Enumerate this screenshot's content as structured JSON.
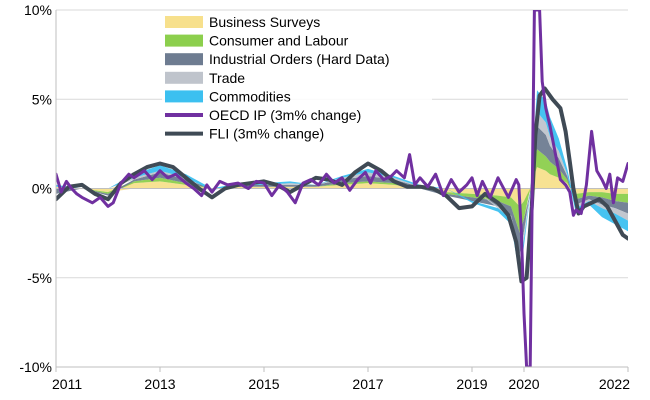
{
  "chart_data": {
    "type": "area",
    "title": "",
    "xlabel": "",
    "ylabel": "",
    "x_ticks": [
      "2011",
      "2013",
      "2015",
      "2017",
      "2019",
      "2020",
      "2022"
    ],
    "x_tick_years": [
      2011,
      2013,
      2015,
      2017,
      2019,
      2020,
      2022
    ],
    "xlim": [
      2011,
      2022
    ],
    "ylim": [
      -10,
      10
    ],
    "y_ticks": [
      10,
      5,
      0,
      -5,
      -10
    ],
    "y_tick_labels": [
      "10%",
      "5%",
      "0%",
      "-5%",
      "-10%"
    ],
    "grid": "horizontal",
    "legend_position": "top-left",
    "x": [
      2011.0,
      2011.5,
      2012.0,
      2012.5,
      2013.0,
      2013.5,
      2014.0,
      2014.5,
      2015.0,
      2015.5,
      2016.0,
      2016.5,
      2017.0,
      2017.5,
      2018.0,
      2018.5,
      2019.0,
      2019.5,
      2019.75,
      2019.92,
      2020.0,
      2020.12,
      2020.25,
      2020.42,
      2020.5,
      2020.67,
      2020.83,
      2021.0,
      2021.25,
      2021.5,
      2021.75,
      2022.0
    ],
    "stacked_series": [
      {
        "name": "Business Surveys",
        "color": "#F7E08C",
        "values": [
          0.1,
          0.0,
          -0.2,
          0.3,
          0.4,
          0.2,
          0.0,
          0.1,
          0.1,
          0.1,
          0.1,
          0.2,
          0.3,
          0.2,
          0.0,
          -0.2,
          -0.3,
          -0.4,
          -0.5,
          -1.0,
          -0.7,
          -0.2,
          1.2,
          1.0,
          0.8,
          0.6,
          0.3,
          -0.3,
          -0.2,
          -0.2,
          -0.3,
          -0.3
        ]
      },
      {
        "name": "Consumer and Labour",
        "color": "#8CCF4D",
        "values": [
          0.0,
          0.0,
          -0.1,
          0.1,
          0.2,
          0.1,
          0.0,
          0.0,
          0.0,
          0.0,
          0.0,
          0.1,
          0.1,
          0.1,
          0.0,
          -0.1,
          -0.2,
          -0.3,
          -0.5,
          -1.5,
          -1.0,
          0.0,
          1.0,
          0.8,
          0.7,
          0.5,
          0.2,
          -0.3,
          -0.2,
          -0.3,
          -0.4,
          -0.5
        ]
      },
      {
        "name": "Industrial Orders (Hard Data)",
        "color": "#6E7C91",
        "values": [
          -0.3,
          0.0,
          -0.1,
          0.1,
          0.3,
          0.2,
          0.0,
          0.1,
          0.1,
          0.1,
          0.1,
          0.2,
          0.3,
          0.2,
          0.1,
          -0.1,
          -0.2,
          -0.3,
          -0.5,
          -1.2,
          -0.7,
          -0.1,
          1.3,
          1.2,
          0.9,
          0.6,
          0.2,
          -0.3,
          -0.2,
          -0.4,
          -0.4,
          -0.6
        ]
      },
      {
        "name": "Trade",
        "color": "#BFC4CC",
        "values": [
          0.0,
          0.0,
          0.0,
          0.1,
          0.1,
          0.1,
          0.0,
          0.0,
          0.0,
          0.1,
          0.0,
          0.1,
          0.2,
          0.1,
          0.0,
          0.0,
          0.0,
          -0.1,
          -0.2,
          -0.8,
          -0.4,
          0.0,
          0.8,
          0.7,
          0.5,
          0.4,
          0.1,
          -0.2,
          -0.1,
          -0.2,
          -0.3,
          -0.4
        ]
      },
      {
        "name": "Commodities",
        "color": "#3CC0F0",
        "values": [
          0.1,
          0.0,
          0.0,
          0.2,
          0.3,
          0.2,
          -0.1,
          0.1,
          0.1,
          0.1,
          0.0,
          0.1,
          0.2,
          0.1,
          0.1,
          0.0,
          -0.1,
          -0.2,
          -0.3,
          -0.5,
          -0.4,
          -0.1,
          1.2,
          1.2,
          1.1,
          0.7,
          0.3,
          -0.3,
          -0.2,
          -0.5,
          -0.6,
          -0.6
        ]
      }
    ],
    "line_series": [
      {
        "name": "OECD IP (3m% change)",
        "color": "#7030A0",
        "points": [
          [
            2011.0,
            0.8
          ],
          [
            2011.1,
            -0.2
          ],
          [
            2011.2,
            0.4
          ],
          [
            2011.3,
            0.0
          ],
          [
            2011.4,
            -0.3
          ],
          [
            2011.5,
            -0.5
          ],
          [
            2011.7,
            -0.8
          ],
          [
            2011.85,
            -0.5
          ],
          [
            2012.0,
            -1.0
          ],
          [
            2012.1,
            -0.8
          ],
          [
            2012.25,
            0.3
          ],
          [
            2012.4,
            0.8
          ],
          [
            2012.5,
            0.6
          ],
          [
            2012.7,
            1.0
          ],
          [
            2012.85,
            0.5
          ],
          [
            2013.0,
            1.0
          ],
          [
            2013.15,
            0.6
          ],
          [
            2013.3,
            0.8
          ],
          [
            2013.5,
            0.3
          ],
          [
            2013.65,
            0.0
          ],
          [
            2013.8,
            -0.4
          ],
          [
            2013.9,
            0.2
          ],
          [
            2014.0,
            -0.2
          ],
          [
            2014.15,
            0.4
          ],
          [
            2014.3,
            0.2
          ],
          [
            2014.5,
            0.3
          ],
          [
            2014.7,
            0.0
          ],
          [
            2014.85,
            0.4
          ],
          [
            2015.0,
            0.3
          ],
          [
            2015.15,
            -0.4
          ],
          [
            2015.3,
            0.2
          ],
          [
            2015.45,
            -0.2
          ],
          [
            2015.6,
            -0.8
          ],
          [
            2015.75,
            0.3
          ],
          [
            2015.9,
            0.5
          ],
          [
            2016.05,
            0.2
          ],
          [
            2016.2,
            0.8
          ],
          [
            2016.35,
            0.3
          ],
          [
            2016.5,
            0.6
          ],
          [
            2016.65,
            -0.1
          ],
          [
            2016.8,
            0.5
          ],
          [
            2016.95,
            0.9
          ],
          [
            2017.05,
            0.3
          ],
          [
            2017.15,
            1.0
          ],
          [
            2017.3,
            0.5
          ],
          [
            2017.45,
            0.7
          ],
          [
            2017.55,
            1.0
          ],
          [
            2017.7,
            0.6
          ],
          [
            2017.8,
            1.9
          ],
          [
            2017.9,
            0.2
          ],
          [
            2018.0,
            0.6
          ],
          [
            2018.15,
            0.1
          ],
          [
            2018.3,
            0.8
          ],
          [
            2018.45,
            -0.4
          ],
          [
            2018.6,
            0.5
          ],
          [
            2018.75,
            -0.2
          ],
          [
            2018.9,
            0.2
          ],
          [
            2019.0,
            0.6
          ],
          [
            2019.1,
            -0.4
          ],
          [
            2019.2,
            0.4
          ],
          [
            2019.35,
            -0.5
          ],
          [
            2019.5,
            0.6
          ],
          [
            2019.7,
            -0.5
          ],
          [
            2019.85,
            0.5
          ],
          [
            2019.9,
            0.2
          ],
          [
            2019.95,
            -2.5
          ],
          [
            2020.0,
            -7.0
          ],
          [
            2020.05,
            -10.0
          ],
          [
            2020.12,
            -10.0
          ],
          [
            2020.2,
            10.0
          ],
          [
            2020.3,
            10.0
          ],
          [
            2020.35,
            6.0
          ],
          [
            2020.42,
            4.5
          ],
          [
            2020.5,
            3.5
          ],
          [
            2020.6,
            2.0
          ],
          [
            2020.7,
            0.5
          ],
          [
            2020.8,
            0.2
          ],
          [
            2020.88,
            -0.2
          ],
          [
            2020.95,
            -1.5
          ],
          [
            2021.0,
            -1.2
          ],
          [
            2021.1,
            -1.4
          ],
          [
            2021.2,
            0.2
          ],
          [
            2021.3,
            3.2
          ],
          [
            2021.4,
            1.0
          ],
          [
            2021.5,
            0.5
          ],
          [
            2021.58,
            0.0
          ],
          [
            2021.65,
            0.8
          ],
          [
            2021.72,
            -0.8
          ],
          [
            2021.8,
            0.6
          ],
          [
            2021.9,
            0.4
          ],
          [
            2022.0,
            1.4
          ]
        ]
      },
      {
        "name": "FLI (3m% change)",
        "color": "#3F4A55",
        "points": [
          [
            2011.0,
            -0.6
          ],
          [
            2011.25,
            0.1
          ],
          [
            2011.5,
            0.2
          ],
          [
            2011.75,
            -0.3
          ],
          [
            2012.0,
            -0.6
          ],
          [
            2012.25,
            0.3
          ],
          [
            2012.5,
            0.8
          ],
          [
            2012.75,
            1.2
          ],
          [
            2013.0,
            1.4
          ],
          [
            2013.25,
            1.2
          ],
          [
            2013.5,
            0.6
          ],
          [
            2013.75,
            0.0
          ],
          [
            2014.0,
            -0.5
          ],
          [
            2014.25,
            0.0
          ],
          [
            2014.5,
            0.2
          ],
          [
            2014.75,
            0.3
          ],
          [
            2015.0,
            0.4
          ],
          [
            2015.25,
            0.2
          ],
          [
            2015.5,
            -0.2
          ],
          [
            2015.75,
            0.2
          ],
          [
            2016.0,
            0.6
          ],
          [
            2016.25,
            0.5
          ],
          [
            2016.5,
            0.2
          ],
          [
            2016.75,
            0.9
          ],
          [
            2017.0,
            1.4
          ],
          [
            2017.25,
            1.0
          ],
          [
            2017.5,
            0.4
          ],
          [
            2017.75,
            0.1
          ],
          [
            2018.0,
            0.1
          ],
          [
            2018.25,
            0.0
          ],
          [
            2018.5,
            -0.4
          ],
          [
            2018.75,
            -1.1
          ],
          [
            2019.0,
            -1.0
          ],
          [
            2019.25,
            -0.3
          ],
          [
            2019.5,
            -0.8
          ],
          [
            2019.7,
            -1.5
          ],
          [
            2019.85,
            -3.0
          ],
          [
            2019.95,
            -5.2
          ],
          [
            2020.05,
            -5.0
          ],
          [
            2020.15,
            -1.0
          ],
          [
            2020.22,
            3.0
          ],
          [
            2020.3,
            5.2
          ],
          [
            2020.4,
            5.6
          ],
          [
            2020.55,
            5.0
          ],
          [
            2020.7,
            4.5
          ],
          [
            2020.8,
            3.2
          ],
          [
            2020.88,
            1.5
          ],
          [
            2020.95,
            0.0
          ],
          [
            2021.05,
            -1.4
          ],
          [
            2021.15,
            -1.0
          ],
          [
            2021.3,
            -0.8
          ],
          [
            2021.45,
            -0.6
          ],
          [
            2021.6,
            -1.0
          ],
          [
            2021.75,
            -1.8
          ],
          [
            2021.9,
            -2.6
          ],
          [
            2022.0,
            -2.8
          ]
        ]
      }
    ]
  }
}
